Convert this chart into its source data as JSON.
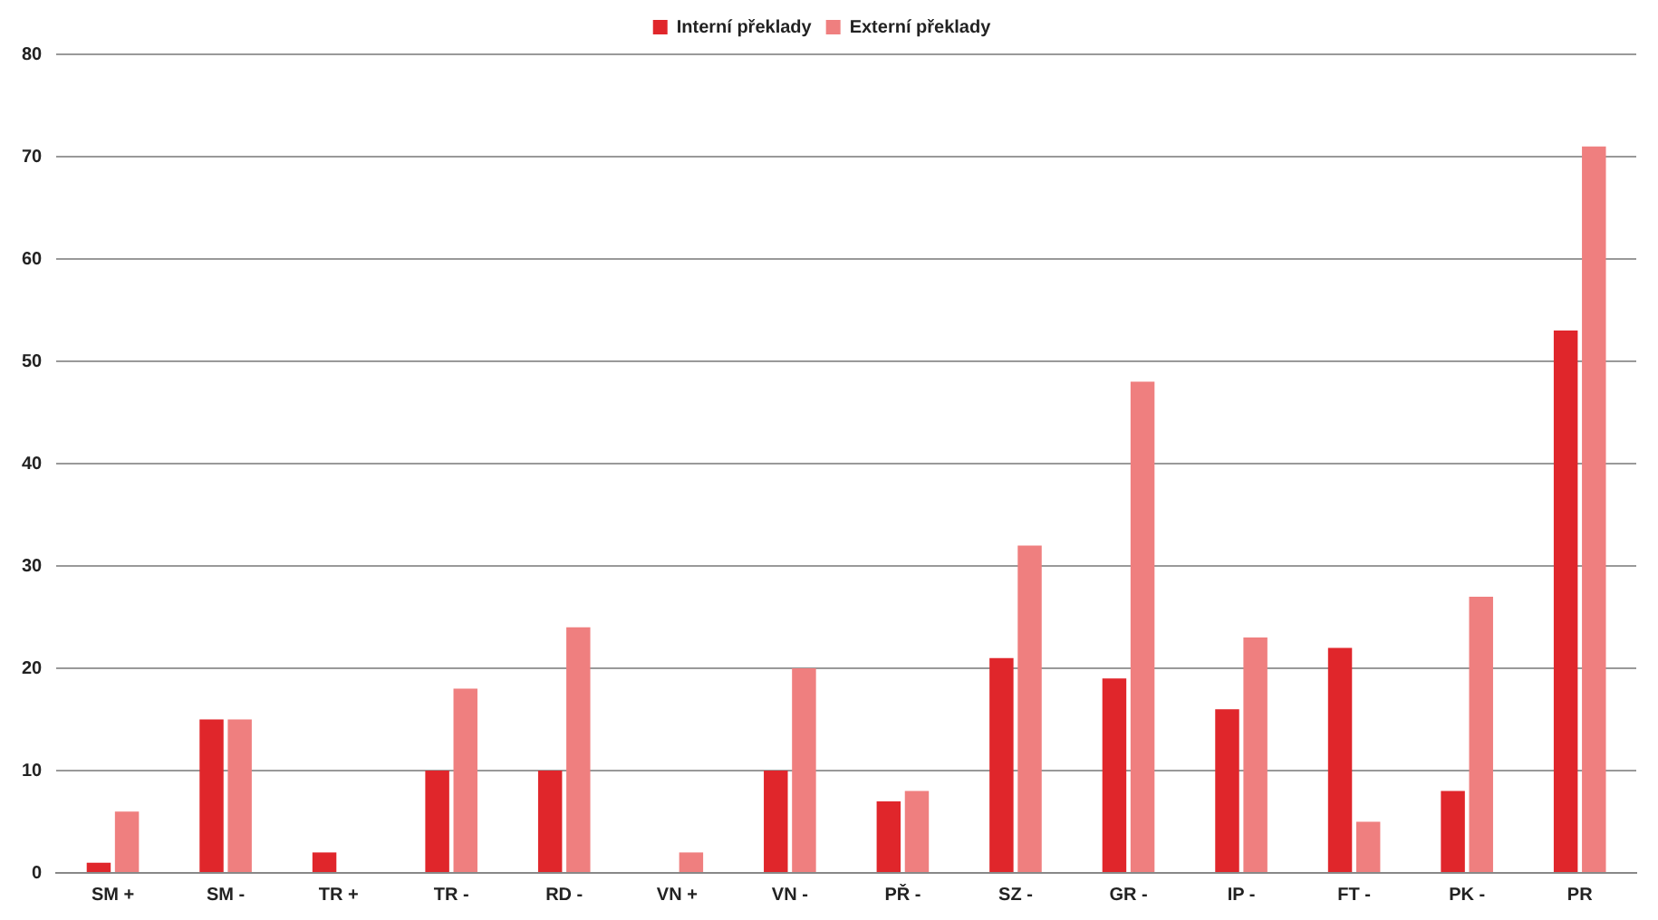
{
  "chart_data": {
    "type": "bar",
    "categories": [
      "SM +",
      "SM -",
      "TR +",
      "TR -",
      "RD -",
      "VN +",
      "VN -",
      "PŘ -",
      "SZ -",
      "GR -",
      "IP -",
      "FT -",
      "PK -",
      "PR"
    ],
    "series": [
      {
        "name": "Interní překlady",
        "color": "#e0262b",
        "values": [
          1,
          15,
          2,
          10,
          10,
          0,
          10,
          7,
          21,
          19,
          16,
          22,
          8,
          53
        ]
      },
      {
        "name": "Externí překlady",
        "color": "#ef7f7f",
        "values": [
          6,
          15,
          0,
          18,
          24,
          2,
          20,
          8,
          32,
          48,
          23,
          5,
          27,
          71
        ]
      }
    ],
    "ylim": [
      0,
      80
    ],
    "yticks": [
      0,
      10,
      20,
      30,
      40,
      50,
      60,
      70,
      80
    ],
    "grid": "y",
    "legend": "top"
  }
}
